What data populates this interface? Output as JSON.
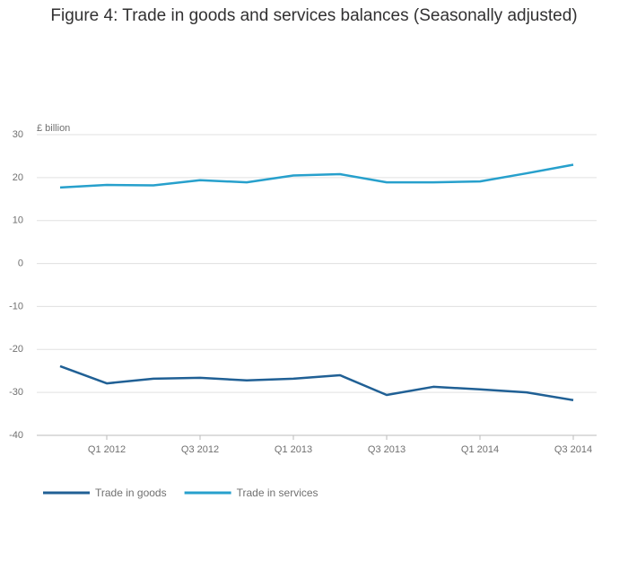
{
  "chart_data": {
    "type": "line",
    "title": "Figure 4: Trade in goods and services balances (Seasonally adjusted)",
    "y_label": "£ billion",
    "categories": [
      null,
      "Q1 2012",
      null,
      "Q3 2012",
      null,
      "Q1 2013",
      null,
      "Q3 2013",
      null,
      "Q1 2014",
      null,
      "Q3 2014"
    ],
    "series": [
      {
        "name": "Trade in goods",
        "color": "#206095",
        "values": [
          -23.9,
          -27.9,
          -26.8,
          -26.6,
          -27.2,
          -26.8,
          -26.0,
          -30.6,
          -28.7,
          -29.3,
          -30.0,
          -31.8
        ]
      },
      {
        "name": "Trade in services",
        "color": "#27a0cc",
        "values": [
          17.7,
          18.3,
          18.2,
          19.4,
          18.9,
          20.5,
          20.8,
          18.9,
          18.9,
          19.1,
          21.0,
          23.0
        ]
      }
    ],
    "ylim": [
      -40,
      30
    ],
    "yticks": [
      -40,
      -30,
      -20,
      -10,
      0,
      10,
      20,
      30
    ],
    "grid": true,
    "legend": "bottom"
  }
}
